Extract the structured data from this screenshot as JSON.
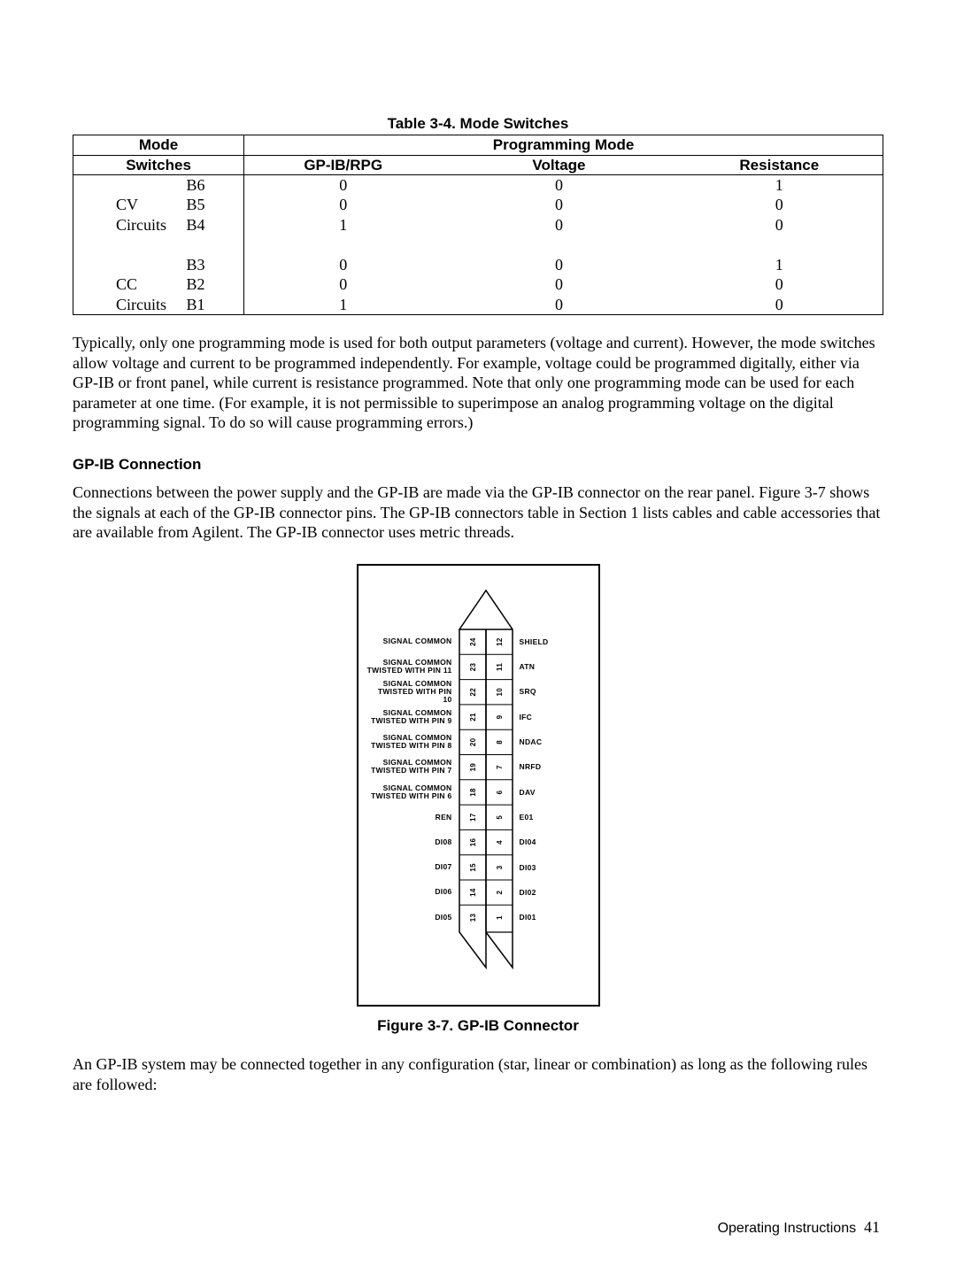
{
  "table": {
    "title": "Table 3-4. Mode Switches",
    "header": {
      "mode": "Mode",
      "switches": "Switches",
      "programming": "Programming Mode"
    },
    "subheader": {
      "gpib": "GP-IB/RPG",
      "voltage": "Voltage",
      "resistance": "Resistance"
    },
    "groups": [
      {
        "name": "CV",
        "sub": "Circuits",
        "rows": [
          {
            "sw": "B6",
            "g": "0",
            "v": "0",
            "r": "1"
          },
          {
            "sw": "B5",
            "g": "0",
            "v": "0",
            "r": "0"
          },
          {
            "sw": "B4",
            "g": "1",
            "v": "0",
            "r": "0"
          }
        ]
      },
      {
        "name": "CC",
        "sub": "Circuits",
        "rows": [
          {
            "sw": "B3",
            "g": "0",
            "v": "0",
            "r": "1"
          },
          {
            "sw": "B2",
            "g": "0",
            "v": "0",
            "r": "0"
          },
          {
            "sw": "B1",
            "g": "1",
            "v": "0",
            "r": "0"
          }
        ]
      }
    ]
  },
  "paragraphs": {
    "p1": "Typically, only one programming mode is used for both output parameters (voltage and current). However, the mode switches allow voltage and current to be programmed independently. For example, voltage could be programmed digitally, either via GP-IB or front panel, while current is resistance programmed. Note that only one programming mode can be used for each parameter at one time. (For example, it is not permissible to superimpose an analog programming voltage on the digital programming signal. To do so will cause programming errors.)",
    "h1": "GP-IB Connection",
    "p2": "Connections between the power supply and the GP-IB are made via the GP-IB connector on the rear panel.  Figure 3-7 shows the signals at each of the GP-IB connector pins. The GP-IB connectors table in Section 1 lists cables and cable accessories that are available from Agilent. The GP-IB connector uses metric threads.",
    "p3": "An GP-IB system may be connected together in any configuration (star, linear or combination) as long as the following rules are followed:"
  },
  "figure": {
    "caption": "Figure 3-7. GP-IB Connector",
    "left_pins": [
      {
        "l1": "SIGNAL COMMON",
        "l2": "",
        "n": "24"
      },
      {
        "l1": "SIGNAL COMMON",
        "l2": "TWISTED WITH PIN 11",
        "n": "23"
      },
      {
        "l1": "SIGNAL COMMON",
        "l2": "TWISTED WITH PIN 10",
        "n": "22"
      },
      {
        "l1": "SIGNAL COMMON",
        "l2": "TWISTED WITH PIN  9",
        "n": "21"
      },
      {
        "l1": "SIGNAL COMMON",
        "l2": "TWISTED WITH PIN  8",
        "n": "20"
      },
      {
        "l1": "SIGNAL COMMON",
        "l2": "TWISTED WITH PIN  7",
        "n": "19"
      },
      {
        "l1": "SIGNAL COMMON",
        "l2": "TWISTED WITH PIN  6",
        "n": "18"
      },
      {
        "l1": "REN",
        "l2": "",
        "n": "17"
      },
      {
        "l1": "DI08",
        "l2": "",
        "n": "16"
      },
      {
        "l1": "DI07",
        "l2": "",
        "n": "15"
      },
      {
        "l1": "DI06",
        "l2": "",
        "n": "14"
      },
      {
        "l1": "DI05",
        "l2": "",
        "n": "13"
      }
    ],
    "right_pins": [
      {
        "n": "12",
        "lab": "SHIELD"
      },
      {
        "n": "11",
        "lab": "ATN"
      },
      {
        "n": "10",
        "lab": "SRQ"
      },
      {
        "n": "9",
        "lab": "IFC"
      },
      {
        "n": "8",
        "lab": "NDAC"
      },
      {
        "n": "7",
        "lab": "NRFD"
      },
      {
        "n": "6",
        "lab": "DAV"
      },
      {
        "n": "5",
        "lab": "E01"
      },
      {
        "n": "4",
        "lab": "DI04"
      },
      {
        "n": "3",
        "lab": "DI03"
      },
      {
        "n": "2",
        "lab": "DI02"
      },
      {
        "n": "1",
        "lab": "DI01"
      }
    ]
  },
  "footer": {
    "label": "Operating Instructions",
    "page": "41"
  }
}
